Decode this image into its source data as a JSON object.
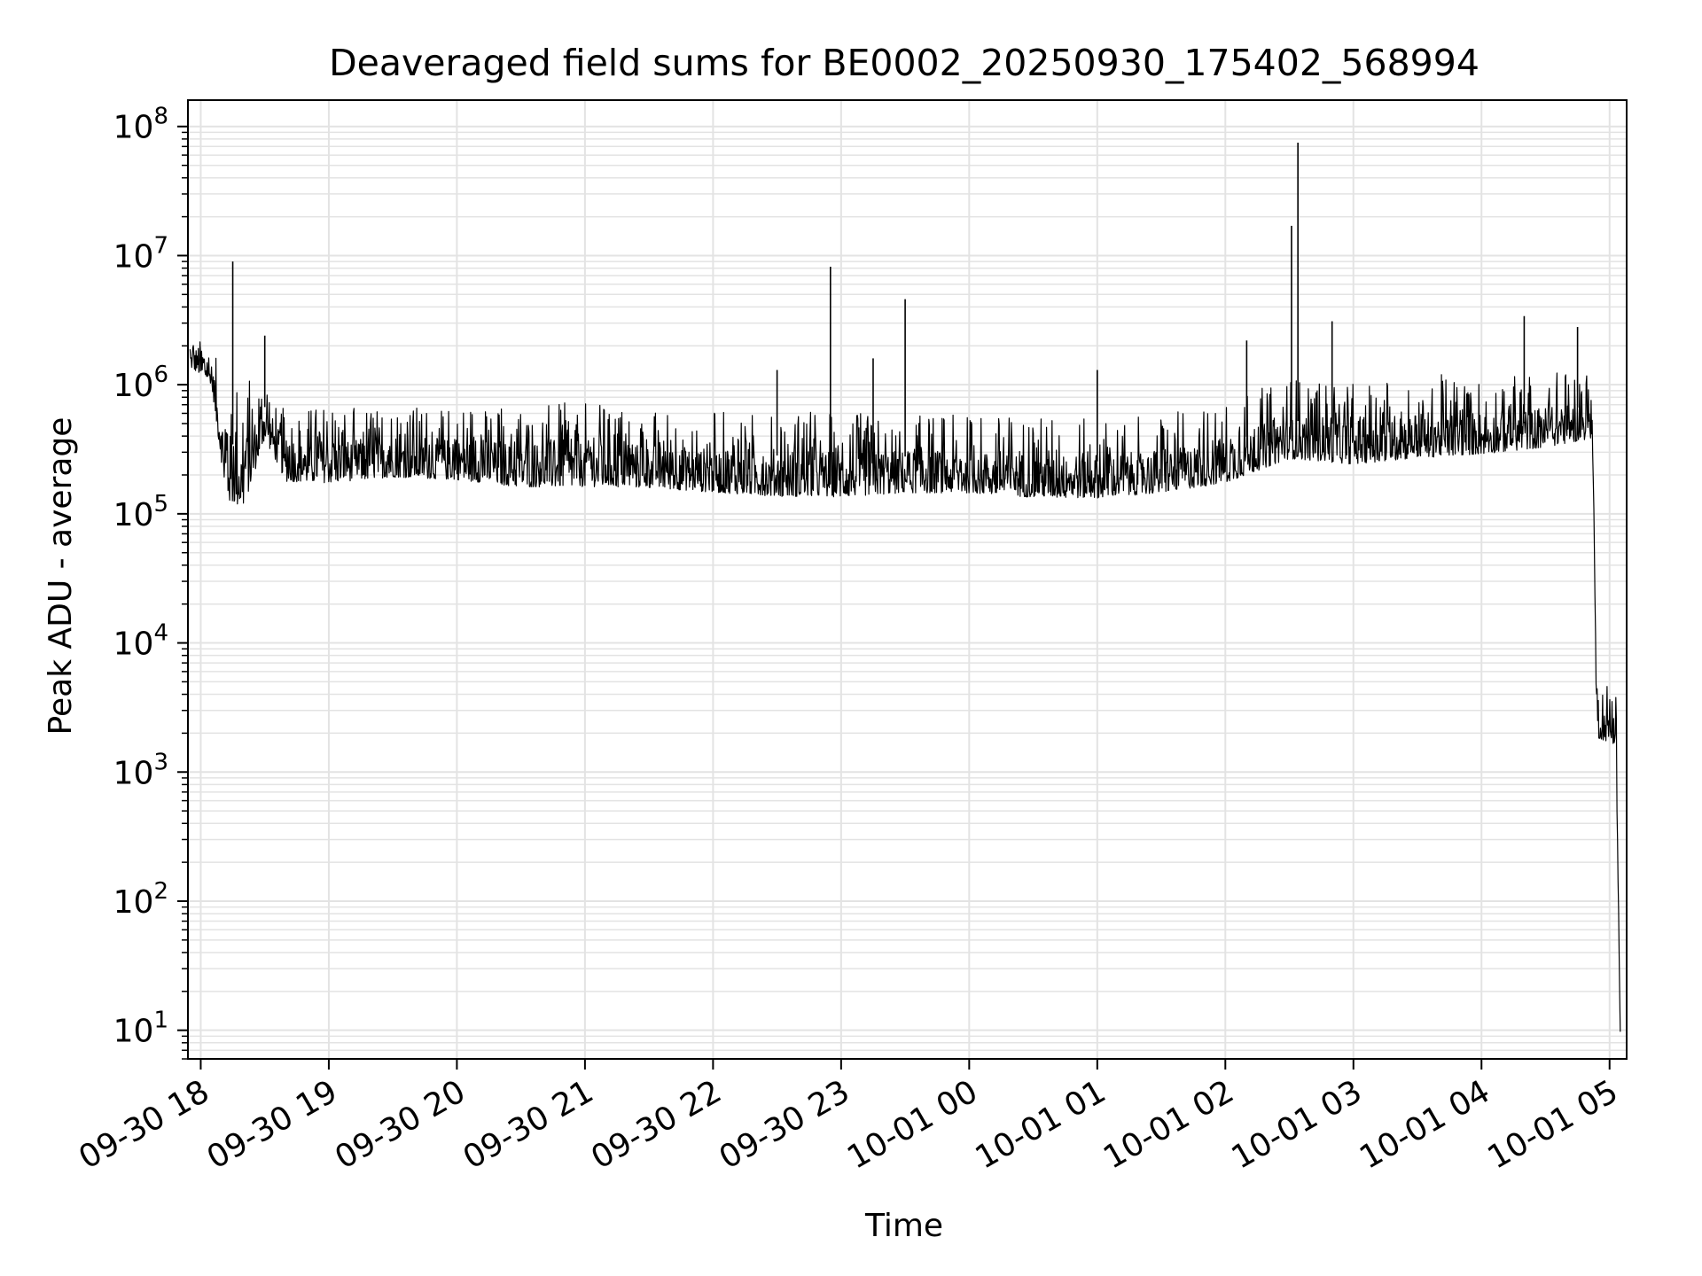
{
  "chart_data": {
    "type": "line",
    "title": "Deaveraged field sums for BE0002_20250930_175402_568994",
    "xlabel": "Time",
    "ylabel": "Peak ADU - average",
    "yscale": "log",
    "ylim": [
      6,
      160000000
    ],
    "xlim": [
      "2025-09-30 17:54",
      "2025-10-01 05:08"
    ],
    "grid": true,
    "line_color": "#000000",
    "grid_color": "#e3e3e3",
    "x_ticks": [
      {
        "t": "2025-09-30 18:00",
        "label": "09-30 18"
      },
      {
        "t": "2025-09-30 19:00",
        "label": "09-30 19"
      },
      {
        "t": "2025-09-30 20:00",
        "label": "09-30 20"
      },
      {
        "t": "2025-09-30 21:00",
        "label": "09-30 21"
      },
      {
        "t": "2025-09-30 22:00",
        "label": "09-30 22"
      },
      {
        "t": "2025-09-30 23:00",
        "label": "09-30 23"
      },
      {
        "t": "2025-10-01 00:00",
        "label": "10-01 00"
      },
      {
        "t": "2025-10-01 01:00",
        "label": "10-01 01"
      },
      {
        "t": "2025-10-01 02:00",
        "label": "10-01 02"
      },
      {
        "t": "2025-10-01 03:00",
        "label": "10-01 03"
      },
      {
        "t": "2025-10-01 04:00",
        "label": "10-01 04"
      },
      {
        "t": "2025-10-01 05:00",
        "label": "10-01 05"
      }
    ],
    "y_ticks": [
      {
        "value": 10,
        "base": "10",
        "exp": "1"
      },
      {
        "value": 100,
        "base": "10",
        "exp": "2"
      },
      {
        "value": 1000,
        "base": "10",
        "exp": "3"
      },
      {
        "value": 10000,
        "base": "10",
        "exp": "4"
      },
      {
        "value": 100000,
        "base": "10",
        "exp": "5"
      },
      {
        "value": 1000000,
        "base": "10",
        "exp": "6"
      },
      {
        "value": 10000000,
        "base": "10",
        "exp": "7"
      },
      {
        "value": 100000000,
        "base": "10",
        "exp": "8"
      }
    ],
    "series": [
      {
        "envelope": [
          {
            "t": "2025-09-30 17:55",
            "low": 1200000,
            "high": 2800000
          },
          {
            "t": "2025-09-30 18:05",
            "low": 900000,
            "high": 2000000
          },
          {
            "t": "2025-09-30 18:12",
            "low": 80000,
            "high": 1600000
          },
          {
            "t": "2025-09-30 18:20",
            "low": 70000,
            "high": 1500000
          },
          {
            "t": "2025-09-30 18:30",
            "low": 300000,
            "high": 1500000
          },
          {
            "t": "2025-09-30 18:40",
            "low": 140000,
            "high": 700000
          },
          {
            "t": "2025-09-30 19:00",
            "low": 130000,
            "high": 900000
          },
          {
            "t": "2025-09-30 19:30",
            "low": 150000,
            "high": 800000
          },
          {
            "t": "2025-09-30 20:00",
            "low": 140000,
            "high": 850000
          },
          {
            "t": "2025-09-30 20:30",
            "low": 120000,
            "high": 850000
          },
          {
            "t": "2025-09-30 21:00",
            "low": 120000,
            "high": 900000
          },
          {
            "t": "2025-09-30 21:30",
            "low": 120000,
            "high": 800000
          },
          {
            "t": "2025-09-30 22:00",
            "low": 110000,
            "high": 750000
          },
          {
            "t": "2025-09-30 22:30",
            "low": 100000,
            "high": 800000
          },
          {
            "t": "2025-09-30 23:00",
            "low": 100000,
            "high": 750000
          },
          {
            "t": "2025-09-30 23:30",
            "low": 110000,
            "high": 700000
          },
          {
            "t": "2025-10-01 00:00",
            "low": 110000,
            "high": 700000
          },
          {
            "t": "2025-10-01 00:30",
            "low": 100000,
            "high": 700000
          },
          {
            "t": "2025-10-01 01:00",
            "low": 100000,
            "high": 650000
          },
          {
            "t": "2025-10-01 01:30",
            "low": 110000,
            "high": 700000
          },
          {
            "t": "2025-10-01 02:00",
            "low": 130000,
            "high": 900000
          },
          {
            "t": "2025-10-01 02:30",
            "low": 200000,
            "high": 1400000
          },
          {
            "t": "2025-10-01 03:00",
            "low": 180000,
            "high": 1300000
          },
          {
            "t": "2025-10-01 03:30",
            "low": 200000,
            "high": 1500000
          },
          {
            "t": "2025-10-01 04:00",
            "low": 220000,
            "high": 1400000
          },
          {
            "t": "2025-10-01 04:30",
            "low": 250000,
            "high": 1500000
          },
          {
            "t": "2025-10-01 04:52",
            "low": 300000,
            "high": 1600000
          },
          {
            "t": "2025-10-01 04:54",
            "low": 1500,
            "high": 6000
          },
          {
            "t": "2025-10-01 05:03",
            "low": 1300,
            "high": 6000
          },
          {
            "t": "2025-10-01 05:05",
            "low": 5,
            "high": 40
          }
        ],
        "spikes": [
          {
            "t": "2025-09-30 18:15",
            "value": 9000000
          },
          {
            "t": "2025-09-30 18:30",
            "value": 2400000
          },
          {
            "t": "2025-09-30 22:55",
            "value": 8200000
          },
          {
            "t": "2025-09-30 23:30",
            "value": 4600000
          },
          {
            "t": "2025-09-30 22:30",
            "value": 1300000
          },
          {
            "t": "2025-09-30 23:15",
            "value": 1600000
          },
          {
            "t": "2025-10-01 01:00",
            "value": 1300000
          },
          {
            "t": "2025-10-01 02:10",
            "value": 2200000
          },
          {
            "t": "2025-10-01 02:31",
            "value": 17000000
          },
          {
            "t": "2025-10-01 02:34",
            "value": 75000000
          },
          {
            "t": "2025-10-01 02:50",
            "value": 3100000
          },
          {
            "t": "2025-10-01 04:20",
            "value": 3400000
          },
          {
            "t": "2025-10-01 04:45",
            "value": 2800000
          }
        ]
      }
    ]
  }
}
